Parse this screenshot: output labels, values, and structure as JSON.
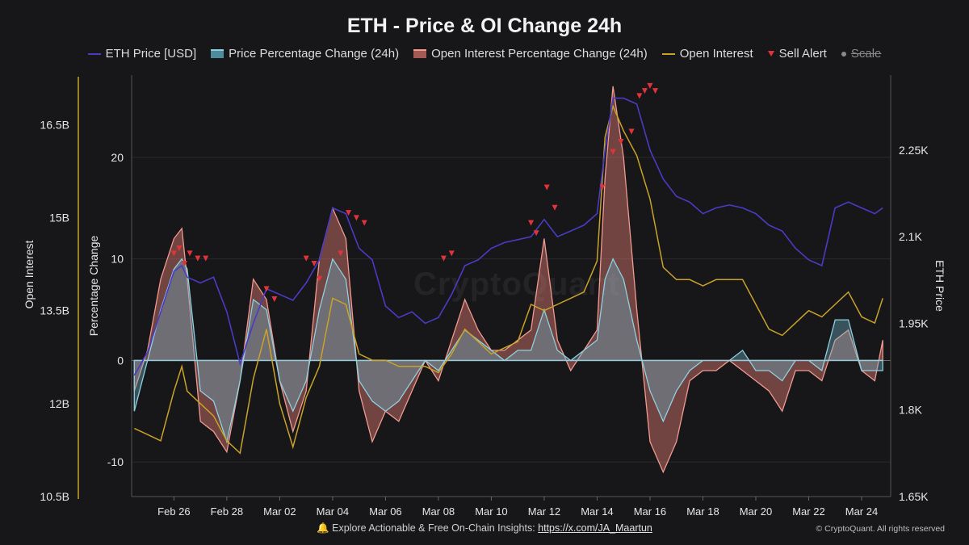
{
  "chart_data": {
    "type": "line",
    "title": "ETH - Price & OI Change 24h",
    "legend": [
      {
        "name": "ETH Price [USD]",
        "kind": "line",
        "color": "#4a3bc4"
      },
      {
        "name": "Price Percentage Change (24h)",
        "kind": "area",
        "color": "#6fb0c2"
      },
      {
        "name": "Open Interest Percentage Change (24h)",
        "kind": "area",
        "color": "#e07c72"
      },
      {
        "name": "Open Interest",
        "kind": "line",
        "color": "#c9a227"
      },
      {
        "name": "Sell Alert",
        "kind": "marker",
        "color": "#e0343a"
      },
      {
        "name": "Scale",
        "kind": "disabled",
        "color": "#8a8a8a"
      }
    ],
    "x_labels": [
      "Feb 26",
      "Feb 28",
      "Mar 02",
      "Mar 04",
      "Mar 06",
      "Mar 08",
      "Mar 10",
      "Mar 12",
      "Mar 14",
      "Mar 16",
      "Mar 18",
      "Mar 20",
      "Mar 22",
      "Mar 24"
    ],
    "x_range": [
      -1.6,
      27.1
    ],
    "axes": {
      "open_interest": {
        "label": "Open Interest",
        "ticks": [
          "16.5B",
          "15B",
          "13.5B",
          "12B",
          "10.5B"
        ],
        "tick_values": [
          16.5,
          15,
          13.5,
          12,
          10.5
        ],
        "range": [
          10.5,
          17.3
        ],
        "unit": "B"
      },
      "percentage_change": {
        "label": "Percentage Change",
        "ticks": [
          "20",
          "10",
          "0",
          "-10"
        ],
        "tick_values": [
          20,
          10,
          0,
          -10
        ],
        "range": [
          -13.4,
          28.1
        ]
      },
      "eth_price": {
        "label": "ETH Price",
        "ticks": [
          "2.25K",
          "2.1K",
          "1.95K",
          "1.8K",
          "1.65K"
        ],
        "tick_values": [
          2250,
          2100,
          1950,
          1800,
          1650
        ],
        "range": [
          1650,
          2380
        ]
      }
    },
    "series": [
      {
        "name": "ETH Price [USD]",
        "axis": "eth_price",
        "x": [
          -1.5,
          -1,
          -0.5,
          0,
          0.3,
          0.5,
          1,
          1.5,
          2,
          2.5,
          3,
          3.5,
          4,
          4.5,
          5,
          5.5,
          6,
          6.5,
          7,
          7.5,
          8,
          8.5,
          9,
          9.5,
          10,
          10.5,
          11,
          11.5,
          12,
          12.5,
          13,
          13.5,
          14,
          14.5,
          15,
          15.5,
          16,
          16.3,
          16.6,
          17,
          17.5,
          18,
          18.5,
          19,
          19.5,
          20,
          20.5,
          21,
          21.5,
          22,
          22.5,
          23,
          23.5,
          24,
          24.5,
          25,
          25.5,
          26,
          26.5,
          26.8
        ],
        "values": [
          1860,
          1900,
          1970,
          2040,
          2050,
          2030,
          2020,
          2030,
          1970,
          1880,
          1950,
          2010,
          2000,
          1990,
          2020,
          2060,
          2150,
          2140,
          2080,
          2060,
          1980,
          1960,
          1970,
          1950,
          1960,
          2000,
          2050,
          2060,
          2080,
          2090,
          2095,
          2100,
          2130,
          2100,
          2110,
          2120,
          2140,
          2250,
          2340,
          2340,
          2330,
          2250,
          2200,
          2170,
          2160,
          2140,
          2150,
          2155,
          2150,
          2140,
          2120,
          2110,
          2080,
          2060,
          2050,
          2150,
          2160,
          2150,
          2140,
          2150
        ]
      },
      {
        "name": "Open Interest",
        "axis": "open_interest",
        "x": [
          -1.5,
          -1,
          -0.5,
          0,
          0.3,
          0.5,
          1,
          1.5,
          2,
          2.5,
          3,
          3.5,
          4,
          4.5,
          5,
          5.5,
          6,
          6.5,
          7,
          7.5,
          8,
          8.5,
          9,
          9.5,
          10,
          10.5,
          11,
          11.5,
          12,
          12.5,
          13,
          13.5,
          14,
          14.5,
          15,
          15.5,
          16,
          16.3,
          16.6,
          17,
          17.5,
          18,
          18.5,
          19,
          19.5,
          20,
          20.5,
          21,
          21.5,
          22,
          22.5,
          23,
          23.5,
          24,
          24.5,
          25,
          25.5,
          26,
          26.5,
          26.8
        ],
        "values": [
          11.6,
          11.5,
          11.4,
          12.2,
          12.6,
          12.2,
          12.0,
          11.8,
          11.4,
          11.2,
          12.4,
          13.2,
          12.0,
          11.3,
          12.1,
          12.6,
          13.7,
          13.6,
          12.8,
          12.7,
          12.7,
          12.6,
          12.6,
          12.6,
          12.5,
          12.8,
          13.2,
          13.0,
          12.8,
          12.9,
          13.0,
          13.6,
          13.5,
          13.6,
          13.7,
          13.8,
          14.3,
          16.3,
          16.8,
          16.4,
          16.0,
          15.3,
          14.2,
          14.0,
          14.0,
          13.9,
          14.0,
          14.0,
          14.0,
          13.6,
          13.2,
          13.1,
          13.3,
          13.5,
          13.4,
          13.6,
          13.8,
          13.4,
          13.3,
          13.7
        ]
      },
      {
        "name": "Price Percentage Change (24h)",
        "axis": "percentage_change",
        "x": [
          -1.5,
          -1,
          -0.5,
          0,
          0.3,
          0.5,
          1,
          1.5,
          2,
          2.5,
          3,
          3.5,
          4,
          4.5,
          5,
          5.5,
          6,
          6.5,
          7,
          7.5,
          8,
          8.5,
          9,
          9.5,
          10,
          10.5,
          11,
          11.5,
          12,
          12.5,
          13,
          13.5,
          14,
          14.5,
          15,
          15.5,
          16,
          16.3,
          16.6,
          17,
          17.5,
          18,
          18.5,
          19,
          19.5,
          20,
          20.5,
          21,
          21.5,
          22,
          22.5,
          23,
          23.5,
          24,
          24.5,
          25,
          25.5,
          26,
          26.5,
          26.8
        ],
        "values": [
          -5,
          0,
          5,
          9,
          10,
          9,
          -3,
          -4,
          -8,
          -2,
          6,
          5,
          -2,
          -5,
          -2,
          5,
          10,
          8,
          -2,
          -4,
          -5,
          -4,
          -2,
          0,
          -1,
          1,
          3,
          2,
          1,
          0,
          1,
          1,
          5,
          1,
          0,
          1,
          2,
          8,
          10,
          8,
          2,
          -3,
          -6,
          -3,
          -1,
          0,
          0,
          0,
          1,
          -1,
          -1,
          -2,
          0,
          0,
          -1,
          4,
          4,
          -1,
          -1,
          -1
        ]
      },
      {
        "name": "Open Interest Percentage Change (24h)",
        "axis": "percentage_change",
        "x": [
          -1.5,
          -1,
          -0.5,
          0,
          0.3,
          0.5,
          1,
          1.5,
          2,
          2.5,
          3,
          3.5,
          4,
          4.5,
          5,
          5.5,
          6,
          6.5,
          7,
          7.5,
          8,
          8.5,
          9,
          9.5,
          10,
          10.5,
          11,
          11.5,
          12,
          12.5,
          13,
          13.5,
          14,
          14.5,
          15,
          15.5,
          16,
          16.3,
          16.6,
          17,
          17.5,
          18,
          18.5,
          19,
          19.5,
          20,
          20.5,
          21,
          21.5,
          22,
          22.5,
          23,
          23.5,
          24,
          24.5,
          25,
          25.5,
          26,
          26.5,
          26.8
        ],
        "values": [
          -3,
          1,
          8,
          12,
          13,
          8,
          -6,
          -7,
          -9,
          -2,
          8,
          6,
          -2,
          -7,
          -3,
          10,
          15,
          12,
          -3,
          -8,
          -5,
          -6,
          -3,
          0,
          -2,
          2,
          6,
          3,
          1,
          1,
          2,
          3,
          12,
          2,
          -1,
          1,
          3,
          18,
          27,
          20,
          5,
          -8,
          -11,
          -8,
          -2,
          -1,
          -1,
          0,
          -1,
          -2,
          -3,
          -5,
          -1,
          -1,
          -2,
          2,
          3,
          -1,
          -2,
          2
        ]
      },
      {
        "name": "Sell Alert",
        "axis": "percentage_change",
        "x": [
          0.0,
          0.2,
          0.4,
          0.6,
          0.9,
          1.2,
          3.5,
          3.8,
          5.0,
          5.3,
          5.5,
          6.3,
          6.6,
          6.9,
          7.2,
          10.2,
          10.5,
          13.5,
          13.7,
          14.1,
          14.4,
          16.2,
          16.6,
          16.9,
          17.3,
          17.6,
          17.8,
          18.0,
          18.2
        ],
        "values": [
          10.5,
          11,
          9.5,
          10.5,
          10,
          10,
          7,
          6,
          10,
          9.5,
          8,
          10.5,
          14.5,
          14,
          13.5,
          10,
          10.5,
          13.5,
          12.5,
          17,
          15,
          17,
          20.5,
          21.5,
          22.5,
          26,
          26.5,
          27,
          26.5
        ]
      }
    ]
  },
  "footer": {
    "text": "Explore Actionable & Free On-Chain Insights: ",
    "link": "https://x.com/JA_Maartun",
    "copyright": "© CryptoQuant. All rights reserved",
    "watermark": "CryptoQuant"
  }
}
